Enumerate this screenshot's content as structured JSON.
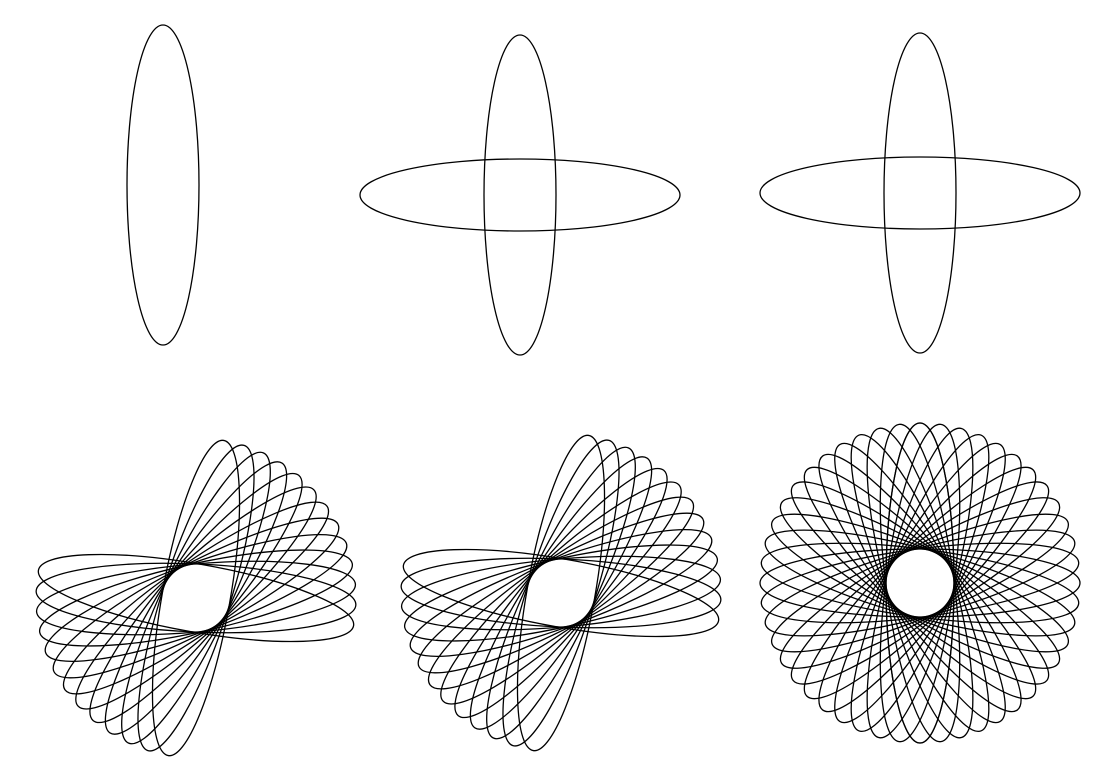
{
  "figure": {
    "stroke_color": "#000000",
    "background_color": "#ffffff",
    "panels": [
      {
        "id": "top-left",
        "ellipse_count": 1,
        "rotation_degrees": [
          90
        ]
      },
      {
        "id": "top-middle",
        "ellipse_count": 2,
        "rotation_degrees": [
          90,
          0
        ]
      },
      {
        "id": "top-right",
        "ellipse_count": 2,
        "rotation_degrees": [
          90,
          0
        ]
      },
      {
        "id": "bottom-left",
        "ellipse_count": 13,
        "rotation_degrees": [
          100,
          107.5,
          115,
          122.5,
          130,
          137.5,
          145,
          152.5,
          160,
          167.5,
          175,
          182.5,
          190
        ]
      },
      {
        "id": "bottom-middle",
        "ellipse_count": 13,
        "rotation_degrees": [
          -80,
          -72.5,
          -65,
          -57.5,
          -50,
          -42.5,
          -35,
          -27.5,
          -20,
          -12.5,
          -5,
          2.5,
          10
        ]
      },
      {
        "id": "bottom-right",
        "ellipse_count": 25,
        "rotation_degrees": [
          -90,
          -82.5,
          -75,
          -67.5,
          -60,
          -52.5,
          -45,
          -37.5,
          -30,
          -22.5,
          -15,
          -7.5,
          0,
          7.5,
          15,
          22.5,
          30,
          37.5,
          45,
          52.5,
          60,
          67.5,
          75,
          82.5,
          90
        ]
      }
    ]
  }
}
